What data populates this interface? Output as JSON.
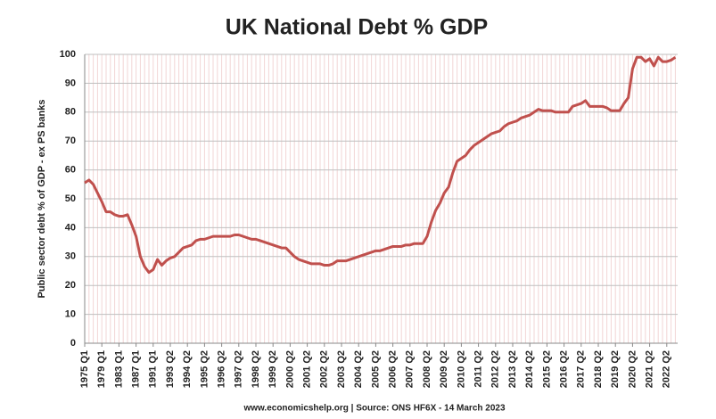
{
  "chart_data": {
    "type": "line",
    "title": "UK National Debt % GDP",
    "y_label": "Public sector debt % of GDP - ex PS banks",
    "source": "www.economicshelp.org | Source: ONS HF6X - 14 March 2023",
    "color": "#c0504d",
    "grid": true,
    "ylim": [
      0,
      100
    ],
    "yticks": [
      0,
      10,
      20,
      30,
      40,
      50,
      60,
      70,
      80,
      90,
      100
    ],
    "categories": [
      "1975 Q1",
      null,
      null,
      null,
      "1979 Q1",
      null,
      null,
      null,
      "1983 Q1",
      null,
      null,
      null,
      "1987 Q1",
      null,
      null,
      null,
      "1991 Q1",
      null,
      null,
      null,
      "1993 Q2",
      null,
      null,
      null,
      "1994 Q2",
      null,
      null,
      null,
      "1995 Q2",
      null,
      null,
      null,
      "1996 Q2",
      null,
      null,
      null,
      "1997 Q2",
      null,
      null,
      null,
      "1998 Q2",
      null,
      null,
      null,
      "1999 Q2",
      null,
      null,
      null,
      "2000 Q2",
      null,
      null,
      null,
      "2001 Q2",
      null,
      null,
      null,
      "2002 Q2",
      null,
      null,
      null,
      "2003 Q2",
      null,
      null,
      null,
      "2004 Q2",
      null,
      null,
      null,
      "2005 Q2",
      null,
      null,
      null,
      "2006 Q2",
      null,
      null,
      null,
      "2007 Q2",
      null,
      null,
      null,
      "2008 Q2",
      null,
      null,
      null,
      "2009 Q2",
      null,
      null,
      null,
      "2010 Q2",
      null,
      null,
      null,
      "2011 Q2",
      null,
      null,
      null,
      "2012 Q2",
      null,
      null,
      null,
      "2013 Q2",
      null,
      null,
      null,
      "2014 Q2",
      null,
      null,
      null,
      "2015 Q2",
      null,
      null,
      null,
      "2016 Q2",
      null,
      null,
      null,
      "2017 Q2",
      null,
      null,
      null,
      "2018 Q2",
      null,
      null,
      null,
      "2019 Q2",
      null,
      null,
      null,
      "2020 Q2",
      null,
      null,
      null,
      "2021 Q2",
      null,
      null,
      null,
      "2022 Q2",
      null,
      null
    ],
    "values": [
      55.5,
      56.5,
      55,
      52,
      49,
      45.5,
      45.5,
      44.5,
      44,
      44,
      44.5,
      41,
      37,
      30,
      26.5,
      24.5,
      25.5,
      29,
      27,
      28.5,
      29.5,
      30,
      31.5,
      33,
      33.5,
      34,
      35.5,
      36,
      36,
      36.5,
      37,
      37,
      37,
      37,
      37,
      37.5,
      37.5,
      37,
      36.5,
      36,
      36,
      35.5,
      35,
      34.5,
      34,
      33.5,
      33,
      33,
      31.5,
      30,
      29,
      28.5,
      28,
      27.5,
      27.5,
      27.5,
      27,
      27,
      27.5,
      28.5,
      28.5,
      28.5,
      29,
      29.5,
      30,
      30.5,
      31,
      31.5,
      32,
      32,
      32.5,
      33,
      33.5,
      33.5,
      33.5,
      34,
      34,
      34.5,
      34.5,
      34.5,
      37,
      42,
      46,
      48.5,
      52,
      54,
      59,
      63,
      64,
      65,
      67,
      68.5,
      69.5,
      70.5,
      71.5,
      72.5,
      73,
      73.5,
      75,
      76,
      76.5,
      77,
      78,
      78.5,
      79,
      80,
      81,
      80.5,
      80.5,
      80.5,
      80,
      80,
      80,
      80,
      82,
      82.5,
      83,
      84,
      82,
      82,
      82,
      82,
      81.5,
      80.5,
      80.5,
      80.5,
      83,
      85,
      95,
      99,
      99,
      97.5,
      98.5,
      96,
      99,
      97.5,
      97.5,
      98,
      99
    ]
  }
}
